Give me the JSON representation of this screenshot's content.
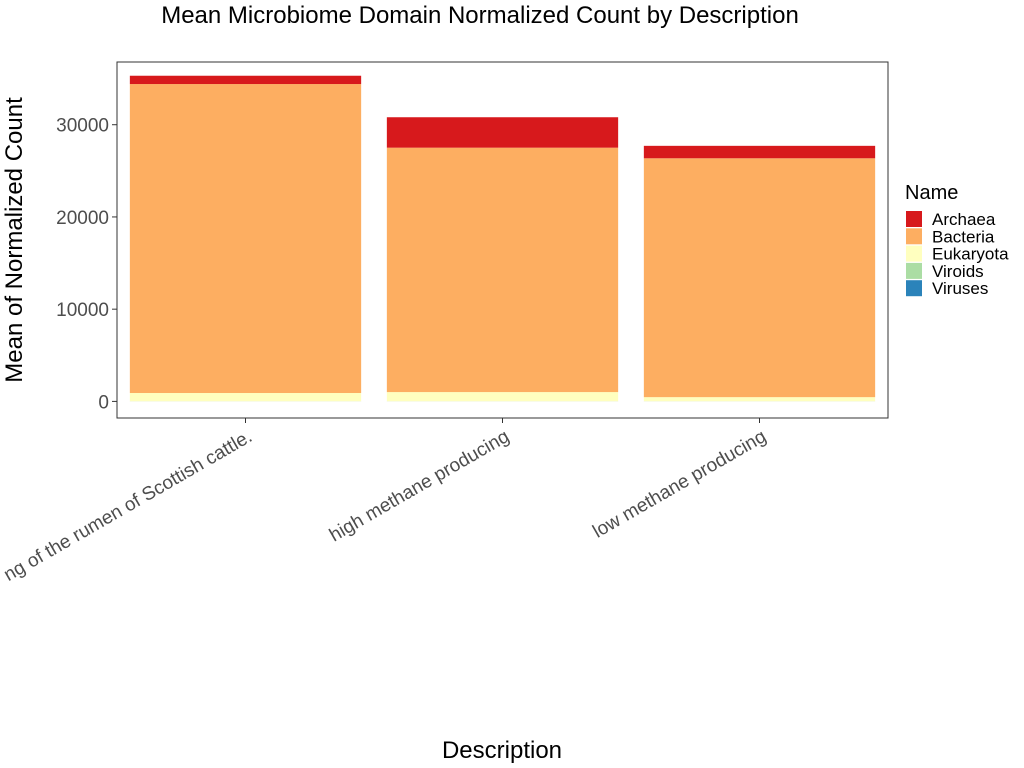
{
  "chart_data": {
    "type": "bar",
    "stacked": true,
    "title": "Mean Microbiome Domain Normalized Count by Description",
    "xlabel": "Description",
    "ylabel": "Mean of Normalized Count",
    "ylim": [
      -1800,
      36800
    ],
    "y_ticks": [
      0,
      10000,
      20000,
      30000
    ],
    "y_tick_labels": [
      "0",
      "10000",
      "20000",
      "30000"
    ],
    "categories": [
      "Metagenomic sequencing of the rumen of Scottish cattle.",
      "high methane producing",
      "low methane producing"
    ],
    "category_labels_visible": [
      "ng of the rumen of Scottish cattle.",
      "high methane producing",
      "low methane producing"
    ],
    "series": [
      {
        "name": "Viruses",
        "color": "#2b83ba",
        "values": [
          10,
          10,
          10
        ]
      },
      {
        "name": "Viroids",
        "color": "#abdda4",
        "values": [
          0,
          0,
          0
        ]
      },
      {
        "name": "Eukaryota",
        "color": "#ffffbf",
        "values": [
          900,
          1000,
          450
        ]
      },
      {
        "name": "Bacteria",
        "color": "#fdae61",
        "values": [
          33500,
          26500,
          25900
        ]
      },
      {
        "name": "Archaea",
        "color": "#d7191c",
        "values": [
          900,
          3300,
          1350
        ]
      }
    ],
    "legend": {
      "title": "Name",
      "position": "right",
      "items": [
        {
          "label": "Archaea",
          "color": "#d7191c"
        },
        {
          "label": "Bacteria",
          "color": "#fdae61"
        },
        {
          "label": "Eukaryota",
          "color": "#ffffbf"
        },
        {
          "label": "Viroids",
          "color": "#abdda4"
        },
        {
          "label": "Viruses",
          "color": "#2b83ba"
        }
      ]
    },
    "grid": false
  }
}
